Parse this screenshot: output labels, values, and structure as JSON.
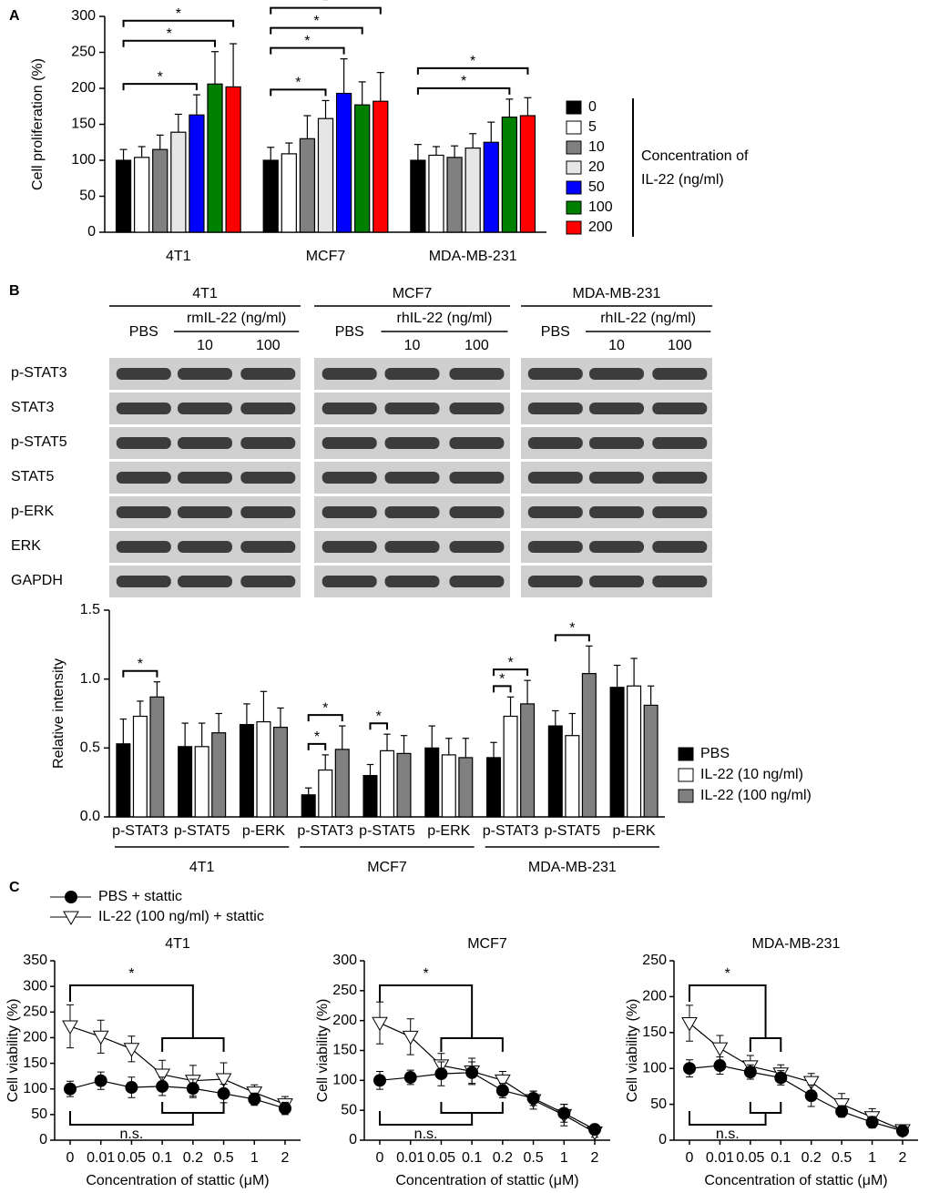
{
  "panels": [
    "A",
    "B",
    "C"
  ],
  "blot": {
    "rows": [
      "p-STAT3",
      "STAT3",
      "p-STAT5",
      "STAT5",
      "p-ERK",
      "ERK",
      "GAPDH"
    ],
    "panels": [
      {
        "cell_line": "4T1",
        "control": "PBS",
        "treatment": "rmIL-22 (ng/ml)",
        "doses": [
          "10",
          "100"
        ]
      },
      {
        "cell_line": "MCF7",
        "control": "PBS",
        "treatment": "rhIL-22 (ng/ml)",
        "doses": [
          "10",
          "100"
        ]
      },
      {
        "cell_line": "MDA-MB-231",
        "control": "PBS",
        "treatment": "rhIL-22 (ng/ml)",
        "doses": [
          "10",
          "100"
        ]
      }
    ]
  },
  "chart_data": [
    {
      "type": "bar",
      "y_label": "Cell proliferation (%)",
      "categories": [
        "4T1",
        "MCF7",
        "MDA-MB-231"
      ],
      "ylim": [
        0,
        300
      ],
      "yticks": [
        0,
        50,
        100,
        150,
        200,
        250,
        300
      ],
      "legend_title": [
        "Concentration of",
        "IL-22 (ng/ml)"
      ],
      "series": [
        {
          "name": "0",
          "color": "#000000",
          "values": [
            100,
            100,
            100
          ],
          "errors": [
            15,
            18,
            22
          ]
        },
        {
          "name": "5",
          "color": "#ffffff",
          "values": [
            104,
            109,
            107
          ],
          "errors": [
            15,
            15,
            12
          ]
        },
        {
          "name": "10",
          "color": "#808080",
          "values": [
            115,
            130,
            104
          ],
          "errors": [
            20,
            32,
            16
          ]
        },
        {
          "name": "20",
          "color": "#e6e6e6",
          "values": [
            139,
            158,
            117
          ],
          "errors": [
            25,
            25,
            20
          ]
        },
        {
          "name": "50",
          "color": "#0000ff",
          "values": [
            163,
            193,
            125
          ],
          "errors": [
            28,
            48,
            28
          ]
        },
        {
          "name": "100",
          "color": "#008000",
          "values": [
            206,
            177,
            160
          ],
          "errors": [
            45,
            32,
            25
          ]
        },
        {
          "name": "200",
          "color": "#ff0000",
          "values": [
            202,
            182,
            162
          ],
          "errors": [
            60,
            40,
            25
          ]
        }
      ],
      "annotations": [
        {
          "text": "*",
          "category": 0,
          "from": 0,
          "to": 4
        },
        {
          "text": "*",
          "category": 0,
          "from": 0,
          "to": 5
        },
        {
          "text": "*",
          "category": 0,
          "from": 0,
          "to": 6
        },
        {
          "text": "*",
          "category": 1,
          "from": 0,
          "to": 3
        },
        {
          "text": "*",
          "category": 1,
          "from": 0,
          "to": 4
        },
        {
          "text": "*",
          "category": 1,
          "from": 0,
          "to": 5
        },
        {
          "text": "*",
          "category": 1,
          "from": 0,
          "to": 6
        },
        {
          "text": "*",
          "category": 2,
          "from": 0,
          "to": 5
        },
        {
          "text": "*",
          "category": 2,
          "from": 0,
          "to": 6
        }
      ]
    },
    {
      "type": "bar",
      "y_label": "Relative intensity",
      "categories": [
        "p-STAT3",
        "p-STAT5",
        "p-ERK",
        "p-STAT3",
        "p-STAT5",
        "p-ERK",
        "p-STAT3",
        "p-STAT5",
        "p-ERK"
      ],
      "groups": [
        "4T1",
        "MCF7",
        "MDA-MB-231"
      ],
      "ylim": [
        0,
        1.5
      ],
      "yticks": [
        {
          "value": 0,
          "label": "0.0"
        },
        0.5,
        {
          "value": 1,
          "label": "1.0"
        },
        1.5
      ],
      "series": [
        {
          "name": "PBS",
          "color": "#000000",
          "values": [
            0.53,
            0.51,
            0.67,
            0.16,
            0.3,
            0.5,
            0.43,
            0.66,
            0.94
          ],
          "errors": [
            0.18,
            0.17,
            0.15,
            0.05,
            0.08,
            0.16,
            0.11,
            0.11,
            0.16
          ]
        },
        {
          "name": "IL-22 (10 ng/ml)",
          "color": "#ffffff",
          "values": [
            0.73,
            0.51,
            0.69,
            0.34,
            0.48,
            0.45,
            0.73,
            0.59,
            0.95
          ],
          "errors": [
            0.11,
            0.17,
            0.22,
            0.11,
            0.12,
            0.12,
            0.14,
            0.16,
            0.2
          ]
        },
        {
          "name": "IL-22 (100 ng/ml)",
          "color": "#808080",
          "values": [
            0.87,
            0.61,
            0.65,
            0.49,
            0.46,
            0.43,
            0.82,
            1.04,
            0.81
          ],
          "errors": [
            0.11,
            0.14,
            0.14,
            0.17,
            0.13,
            0.14,
            0.17,
            0.2,
            0.14
          ]
        }
      ],
      "annotations": [
        {
          "text": "*",
          "category": 0,
          "from": 0,
          "to": 2
        },
        {
          "text": "*",
          "category": 3,
          "from": 0,
          "to": 1
        },
        {
          "text": "*",
          "category": 3,
          "from": 0,
          "to": 2
        },
        {
          "text": "*",
          "category": 4,
          "from": 0,
          "to": 1
        },
        {
          "text": "*",
          "category": 6,
          "from": 0,
          "to": 1
        },
        {
          "text": "*",
          "category": 6,
          "from": 0,
          "to": 2
        },
        {
          "text": "*",
          "category": 7,
          "from": 0,
          "to": 2
        }
      ]
    },
    {
      "type": "line",
      "title": "4T1",
      "x_label": "Concentration of stattic (μM)",
      "y_label": "Cell viability (%)",
      "categories": [
        "0",
        "0.01",
        "0.05",
        "0.1",
        "0.2",
        "0.5",
        "1",
        "2"
      ],
      "ylim": [
        0,
        350
      ],
      "yticks": [
        0,
        50,
        100,
        150,
        200,
        250,
        300,
        350
      ],
      "series": [
        {
          "name": "PBS + stattic",
          "color": "#000000",
          "marker": "circle",
          "values": [
            100,
            116,
            103,
            105,
            101,
            91,
            80,
            62
          ],
          "errors": [
            15,
            17,
            20,
            18,
            18,
            18,
            12,
            12
          ]
        },
        {
          "name": "IL-22 (100 ng/ml) + stattic",
          "color": "#000000",
          "marker": "triangle",
          "values": [
            222,
            202,
            178,
            128,
            116,
            119,
            93,
            70
          ],
          "errors": [
            42,
            32,
            25,
            28,
            30,
            32,
            15,
            15
          ]
        }
      ],
      "annotations": [
        {
          "text": "*",
          "side": "top",
          "from": 0,
          "to": [
            3,
            5
          ]
        },
        {
          "text": "n.s.",
          "side": "bottom",
          "from": 0,
          "to": [
            3,
            5
          ]
        }
      ]
    },
    {
      "type": "line",
      "title": "MCF7",
      "x_label": "Concentration of stattic (μM)",
      "y_label": "Cell viability (%)",
      "categories": [
        "0",
        "0.01",
        "0.05",
        "0.1",
        "0.2",
        "0.5",
        "1",
        "2"
      ],
      "ylim": [
        0,
        300
      ],
      "yticks": [
        0,
        50,
        100,
        150,
        200,
        250,
        300
      ],
      "series": [
        {
          "color": "#000000",
          "marker": "circle",
          "values": [
            100,
            105,
            111,
            113,
            83,
            70,
            45,
            18
          ],
          "errors": [
            15,
            12,
            20,
            18,
            12,
            12,
            15,
            8
          ]
        },
        {
          "color": "#000000",
          "marker": "triangle",
          "values": [
            196,
            173,
            125,
            115,
            100,
            67,
            42,
            13
          ],
          "errors": [
            35,
            30,
            20,
            22,
            15,
            15,
            18,
            8
          ]
        }
      ],
      "annotations": [
        {
          "text": "*",
          "side": "top",
          "from": 0,
          "to": [
            2,
            4
          ]
        },
        {
          "text": "n.s.",
          "side": "bottom",
          "from": 0,
          "to": [
            2,
            4
          ]
        }
      ]
    },
    {
      "type": "line",
      "title": "MDA-MB-231",
      "x_label": "Concentration of stattic (μM)",
      "y_label": "Cell viability (%)",
      "categories": [
        "0",
        "0.01",
        "0.05",
        "0.1",
        "0.2",
        "0.5",
        "1",
        "2"
      ],
      "ylim": [
        0,
        250
      ],
      "yticks": [
        0,
        50,
        100,
        150,
        200,
        250
      ],
      "series": [
        {
          "color": "#000000",
          "marker": "circle",
          "values": [
            100,
            104,
            95,
            87,
            62,
            40,
            25,
            13
          ],
          "errors": [
            12,
            12,
            10,
            10,
            15,
            8,
            8,
            5
          ]
        },
        {
          "color": "#000000",
          "marker": "triangle",
          "values": [
            163,
            128,
            103,
            93,
            81,
            50,
            32,
            14
          ],
          "errors": [
            25,
            18,
            15,
            12,
            12,
            15,
            12,
            5
          ]
        }
      ],
      "annotations": [
        {
          "text": "*",
          "side": "top",
          "from": 0,
          "to": [
            2,
            3
          ]
        },
        {
          "text": "n.s.",
          "side": "bottom",
          "from": 0,
          "to": [
            2,
            3
          ]
        }
      ]
    }
  ]
}
